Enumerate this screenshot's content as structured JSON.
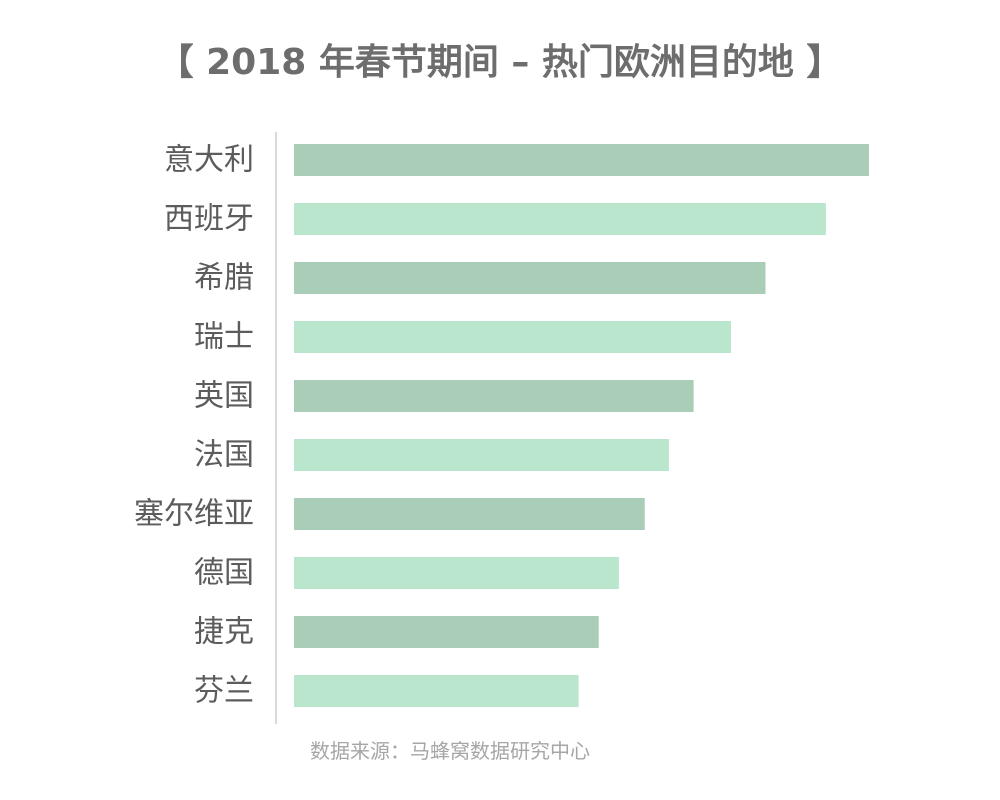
{
  "chart_data": {
    "type": "bar",
    "orientation": "horizontal",
    "title": "【 2018 年春节期间 – 热门欧洲目的地 】",
    "categories": [
      "意大利",
      "西班牙",
      "希腊",
      "瑞士",
      "英国",
      "法国",
      "塞尔维亚",
      "德国",
      "捷克",
      "芬兰"
    ],
    "values": [
      100,
      92.5,
      82,
      76,
      69.5,
      65.2,
      61,
      56.5,
      53,
      49.5
    ],
    "value_scale_max": 100,
    "colors": [
      "#a9cdb7",
      "#b9e6cd"
    ],
    "grid": false,
    "source": "数据来源：马蜂窝数据研究中心"
  }
}
